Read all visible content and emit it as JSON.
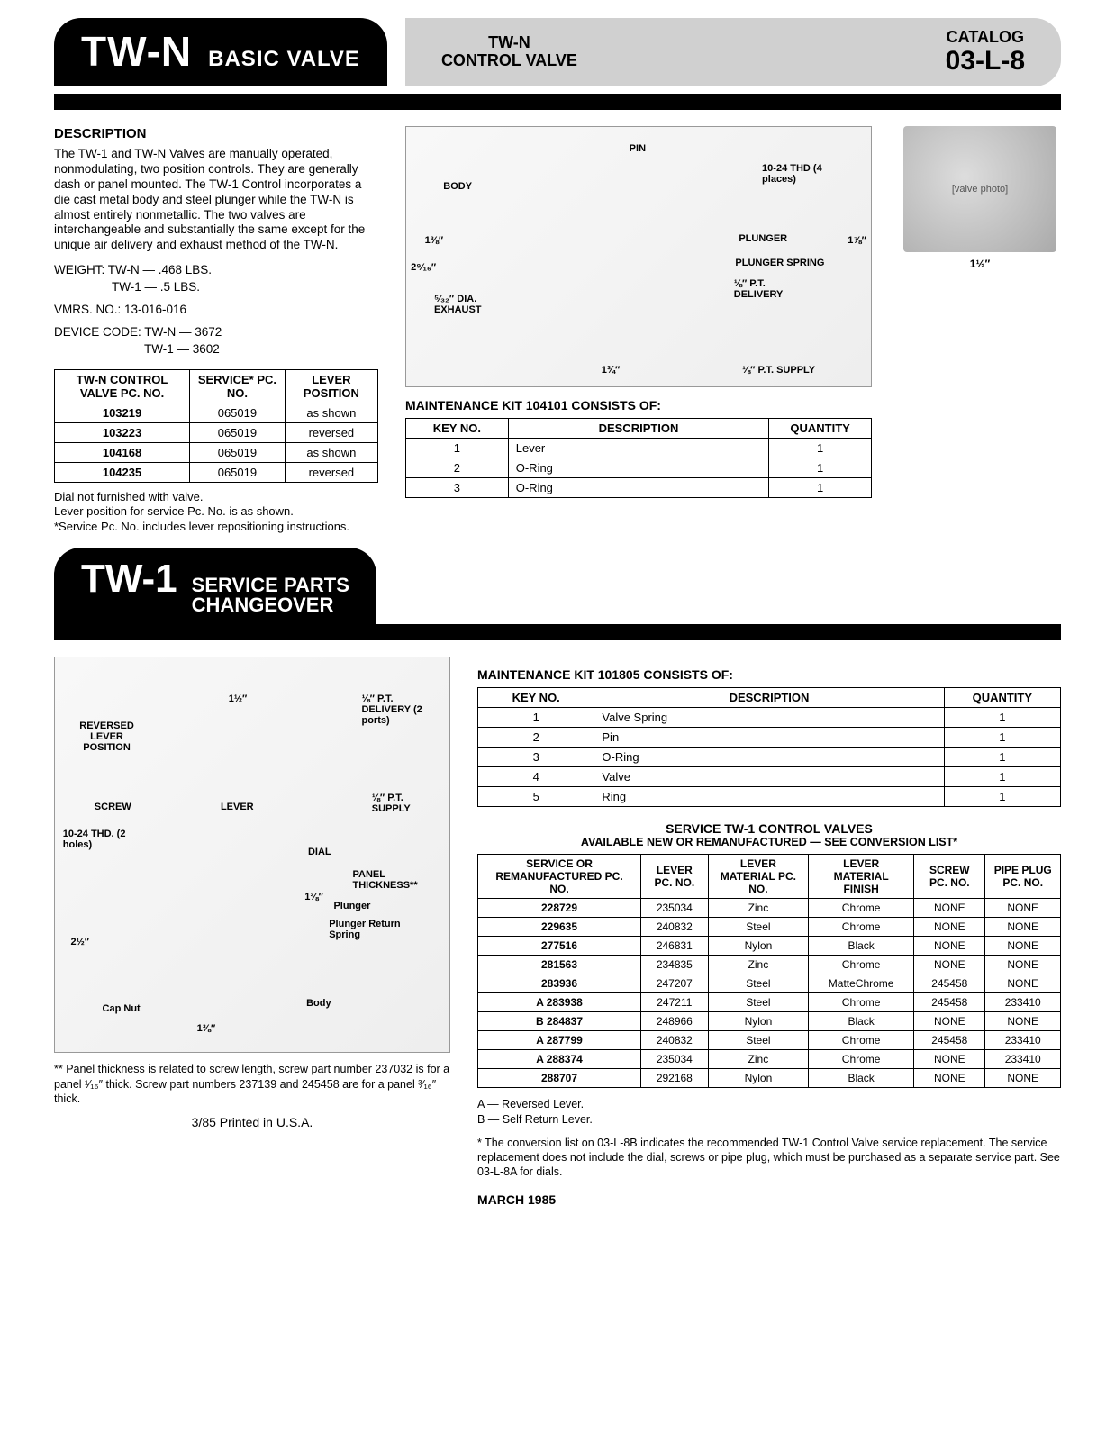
{
  "header": {
    "product_code": "TW-N",
    "product_label": "BASIC VALVE",
    "mid_line1": "TW-N",
    "mid_line2": "CONTROL VALVE",
    "catalog_label": "CATALOG",
    "catalog_code": "03-L-8"
  },
  "section1": {
    "desc_heading": "DESCRIPTION",
    "desc_text": "The TW-1 and TW-N Valves are manually operated, nonmodulating, two position controls. They are generally dash or panel mounted. The TW-1 Control incorporates a die cast metal body and steel plunger while the TW-N is almost entirely nonmetallic. The two valves are interchangeable and substantially the same except for the unique air delivery and exhaust method of the TW-N.",
    "weight_line1": "WEIGHT: TW-N — .468 LBS.",
    "weight_line2": "TW-1 — .5 LBS.",
    "vmrs": "VMRS. NO.: 13-016-016",
    "device_line1": "DEVICE CODE: TW-N — 3672",
    "device_line2": "TW-1 — 3602",
    "table1": {
      "col1": "TW-N CONTROL VALVE PC. NO.",
      "col2": "SERVICE* PC. NO.",
      "col3": "LEVER POSITION",
      "rows": [
        [
          "103219",
          "065019",
          "as shown"
        ],
        [
          "103223",
          "065019",
          "reversed"
        ],
        [
          "104168",
          "065019",
          "as shown"
        ],
        [
          "104235",
          "065019",
          "reversed"
        ]
      ]
    },
    "table_note": "Dial not furnished with valve.\nLever position for service Pc. No. is as shown.\n*Service Pc. No. includes lever repositioning instructions.",
    "diagram": {
      "labels": {
        "pin": "PIN",
        "body": "BODY",
        "thd": "10-24 THD (4 places)",
        "plunger": "PLUNGER",
        "plunger_spring": "PLUNGER SPRING",
        "pt_delivery": "⅛″ P.T. DELIVERY",
        "pt_supply": "⅛″ P.T. SUPPLY",
        "exhaust": "⁵⁄₃₂″ DIA. EXHAUST",
        "d1": "1⅜″",
        "d2": "2⁹⁄₁₆″",
        "d3": "1⅞″",
        "d4": "1¾″",
        "photo_dim": "1½″"
      }
    },
    "kit_title": "MAINTENANCE KIT 104101 CONSISTS OF:",
    "kit_table": {
      "col1": "KEY NO.",
      "col2": "DESCRIPTION",
      "col3": "QUANTITY",
      "rows": [
        [
          "1",
          "Lever",
          "1"
        ],
        [
          "2",
          "O-Ring",
          "1"
        ],
        [
          "3",
          "O-Ring",
          "1"
        ]
      ]
    }
  },
  "section2_header": {
    "code": "TW-1",
    "line1": "SERVICE PARTS",
    "line2": "CHANGEOVER"
  },
  "section2": {
    "diagram": {
      "labels": {
        "reversed": "REVERSED LEVER POSITION",
        "d_1_5": "1½″",
        "pt_delivery": "⅛″ P.T. DELIVERY (2 ports)",
        "screw": "SCREW",
        "lever": "LEVER",
        "pt_supply": "⅛″ P.T. SUPPLY",
        "thd": "10-24 THD. (2 holes)",
        "dial": "DIAL",
        "panel": "PANEL THICKNESS**",
        "plunger": "Plunger",
        "plunger_return": "Plunger Return Spring",
        "d_2_5": "2½″",
        "d_1_38a": "1⅜″",
        "d_1_38b": "1⅜″",
        "body": "Body",
        "capnut": "Cap Nut"
      }
    },
    "panel_note": "** Panel thickness is related to screw length, screw part number 237032 is for a panel ¹⁄₁₆″ thick. Screw part numbers 237139 and 245458 are for a panel ³⁄₁₆″ thick.",
    "kit_title": "MAINTENANCE KIT 101805 CONSISTS OF:",
    "kit_table": {
      "col1": "KEY NO.",
      "col2": "DESCRIPTION",
      "col3": "QUANTITY",
      "rows": [
        [
          "1",
          "Valve Spring",
          "1"
        ],
        [
          "2",
          "Pin",
          "1"
        ],
        [
          "3",
          "O-Ring",
          "1"
        ],
        [
          "4",
          "Valve",
          "1"
        ],
        [
          "5",
          "Ring",
          "1"
        ]
      ]
    },
    "svc_title": "SERVICE TW-1 CONTROL VALVES",
    "svc_sub": "AVAILABLE NEW OR REMANUFACTURED — SEE CONVERSION LIST*",
    "svc_table": {
      "col1": "SERVICE OR REMANUFACTURED PC. NO.",
      "col2": "LEVER PC. NO.",
      "col3": "LEVER MATERIAL PC. NO.",
      "col4": "LEVER MATERIAL FINISH",
      "col5": "SCREW PC. NO.",
      "col6": "PIPE PLUG PC. NO.",
      "rows": [
        [
          "228729",
          "235034",
          "Zinc",
          "Chrome",
          "NONE",
          "NONE"
        ],
        [
          "229635",
          "240832",
          "Steel",
          "Chrome",
          "NONE",
          "NONE"
        ],
        [
          "277516",
          "246831",
          "Nylon",
          "Black",
          "NONE",
          "NONE"
        ],
        [
          "281563",
          "234835",
          "Zinc",
          "Chrome",
          "NONE",
          "NONE"
        ],
        [
          "283936",
          "247207",
          "Steel",
          "MatteChrome",
          "245458",
          "NONE"
        ],
        [
          "A 283938",
          "247211",
          "Steel",
          "Chrome",
          "245458",
          "233410"
        ],
        [
          "B 284837",
          "248966",
          "Nylon",
          "Black",
          "NONE",
          "NONE"
        ],
        [
          "A 287799",
          "240832",
          "Steel",
          "Chrome",
          "245458",
          "233410"
        ],
        [
          "A 288374",
          "235034",
          "Zinc",
          "Chrome",
          "NONE",
          "233410"
        ],
        [
          "288707",
          "292168",
          "Nylon",
          "Black",
          "NONE",
          "NONE"
        ]
      ]
    },
    "legend_a": "A — Reversed Lever.",
    "legend_b": "B — Self Return Lever.",
    "conv_note": "* The conversion list on 03-L-8B indicates the recommended TW-1 Control Valve service replacement. The service replacement does not include the dial, screws or pipe plug, which must be purchased as a separate service part. See 03-L-8A for dials."
  },
  "footer": {
    "date": "MARCH 1985",
    "print": "3/85 Printed in U.S.A."
  }
}
